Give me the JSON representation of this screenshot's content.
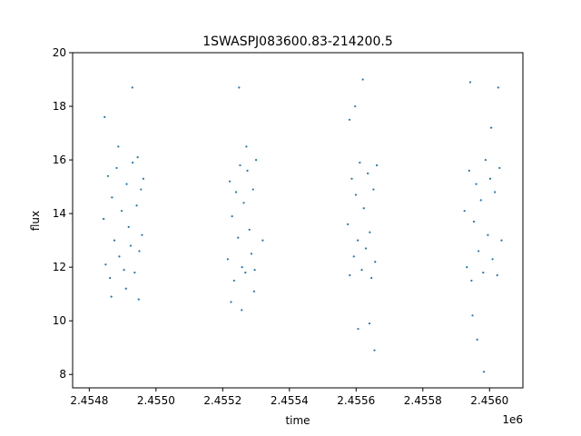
{
  "chart_data": {
    "type": "scatter",
    "title": "1SWASPJ083600.83-214200.5",
    "xlabel": "time",
    "ylabel": "flux",
    "x_offset_label": "1e6",
    "x_multiplier": 1000000,
    "xlim": [
      2454750,
      2456100
    ],
    "ylim": [
      7.5,
      20
    ],
    "x_ticks": [
      2454800,
      2455000,
      2455200,
      2455400,
      2455600,
      2455800,
      2456000
    ],
    "x_tick_labels": [
      "2.4548",
      "2.4550",
      "2.4552",
      "2.4554",
      "2.4556",
      "2.4558",
      "2.4560"
    ],
    "y_ticks": [
      8,
      10,
      12,
      14,
      16,
      18,
      20
    ],
    "y_tick_labels": [
      "8",
      "10",
      "12",
      "14",
      "16",
      "18",
      "20"
    ],
    "grid": false,
    "legend": "none",
    "marker_color": "#1f77b4",
    "series": [
      {
        "x": [
          2454843,
          2454849,
          2454856,
          2454862,
          2454868,
          2454875,
          2454882,
          2454890,
          2454897,
          2454904,
          2454912,
          2454918,
          2454924,
          2454930,
          2454936,
          2454942,
          2454945,
          2454950,
          2454955,
          2454958,
          2454962,
          2454846,
          2454866,
          2454887,
          2454910,
          2454929,
          2454948
        ],
        "y": [
          13.8,
          12.1,
          15.4,
          11.6,
          14.6,
          13.0,
          15.7,
          12.4,
          14.1,
          11.9,
          15.1,
          13.5,
          12.8,
          15.9,
          11.8,
          14.3,
          16.1,
          12.6,
          14.9,
          13.2,
          15.3,
          17.6,
          10.9,
          16.5,
          11.2,
          18.7,
          10.8
        ]
      },
      {
        "x": [
          2455215,
          2455221,
          2455228,
          2455234,
          2455240,
          2455246,
          2455252,
          2455258,
          2455263,
          2455268,
          2455274,
          2455280,
          2455286,
          2455291,
          2455296,
          2455300,
          2455225,
          2455249,
          2455271,
          2455294,
          2455257,
          2455320
        ],
        "y": [
          12.3,
          15.2,
          13.9,
          11.5,
          14.8,
          13.1,
          15.8,
          12.0,
          14.4,
          11.8,
          15.6,
          13.4,
          12.5,
          14.9,
          11.9,
          16.0,
          10.7,
          18.7,
          16.5,
          11.1,
          10.4,
          13.0
        ]
      },
      {
        "x": [
          2455575,
          2455581,
          2455587,
          2455593,
          2455599,
          2455605,
          2455611,
          2455617,
          2455623,
          2455629,
          2455635,
          2455641,
          2455646,
          2455652,
          2455657,
          2455662,
          2455580,
          2455606,
          2455620,
          2455640,
          2455655,
          2455597
        ],
        "y": [
          13.6,
          11.7,
          15.3,
          12.4,
          14.7,
          13.0,
          15.9,
          11.9,
          14.2,
          12.7,
          15.5,
          13.3,
          11.6,
          14.9,
          12.2,
          15.8,
          17.5,
          9.7,
          19.0,
          9.9,
          8.9,
          18.0
        ]
      },
      {
        "x": [
          2455925,
          2455932,
          2455939,
          2455946,
          2455953,
          2455960,
          2455967,
          2455974,
          2455981,
          2455988,
          2455995,
          2456002,
          2456009,
          2456016,
          2456023,
          2456030,
          2456036,
          2455942,
          2455963,
          2455983,
          2456005,
          2456026,
          2455949
        ],
        "y": [
          14.1,
          12.0,
          15.6,
          11.5,
          13.7,
          15.1,
          12.6,
          14.5,
          11.8,
          16.0,
          13.2,
          15.3,
          12.3,
          14.8,
          11.7,
          15.7,
          13.0,
          18.9,
          9.3,
          8.1,
          17.2,
          18.7,
          10.2
        ]
      }
    ]
  }
}
